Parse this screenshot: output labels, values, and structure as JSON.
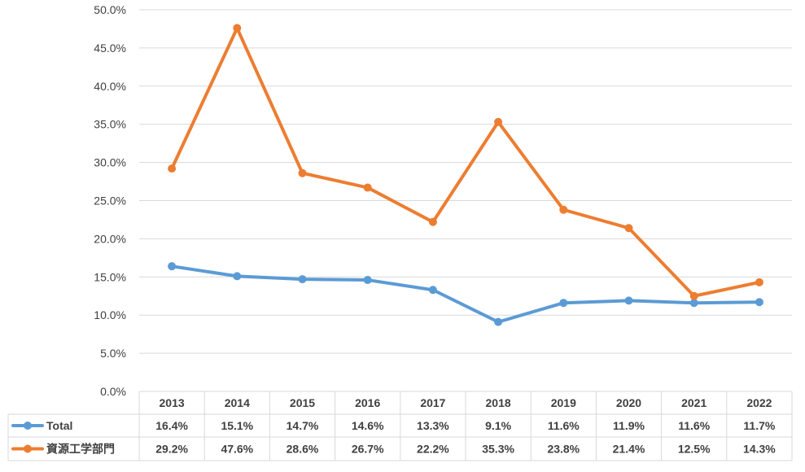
{
  "chart_data": {
    "type": "line",
    "categories": [
      "2013",
      "2014",
      "2015",
      "2016",
      "2017",
      "2018",
      "2019",
      "2020",
      "2021",
      "2022"
    ],
    "ylim": [
      0,
      50
    ],
    "ytick_step": 5,
    "ytick_labels": [
      "0.0%",
      "5.0%",
      "10.0%",
      "15.0%",
      "20.0%",
      "25.0%",
      "30.0%",
      "35.0%",
      "40.0%",
      "45.0%",
      "50.0%"
    ],
    "grid": true,
    "legend": "data-table",
    "series": [
      {
        "name": "Total",
        "color": "#5B9BD5",
        "values": [
          16.4,
          15.1,
          14.7,
          14.6,
          13.3,
          9.1,
          11.6,
          11.9,
          11.6,
          11.7
        ],
        "labels": [
          "16.4%",
          "15.1%",
          "14.7%",
          "14.6%",
          "13.3%",
          "9.1%",
          "11.6%",
          "11.9%",
          "11.6%",
          "11.7%"
        ]
      },
      {
        "name": "資源工学部門",
        "color": "#ED7D31",
        "values": [
          29.2,
          47.6,
          28.6,
          26.7,
          22.2,
          35.3,
          23.8,
          21.4,
          12.5,
          14.3
        ],
        "labels": [
          "29.2%",
          "47.6%",
          "28.6%",
          "26.7%",
          "22.2%",
          "35.3%",
          "23.8%",
          "21.4%",
          "12.5%",
          "14.3%"
        ]
      }
    ]
  }
}
